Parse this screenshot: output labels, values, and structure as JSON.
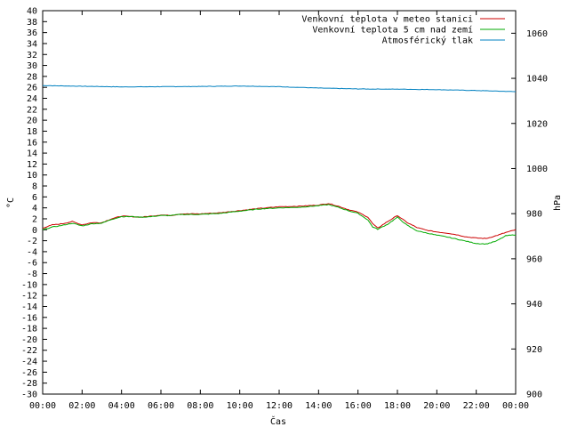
{
  "chart_data": {
    "type": "line",
    "xlabel": "Čas",
    "ylabel": "°C",
    "y2label": "hPa",
    "x_range": [
      "00:00",
      "24:00"
    ],
    "xticks": [
      "00:00",
      "02:00",
      "04:00",
      "06:00",
      "08:00",
      "10:00",
      "12:00",
      "14:00",
      "16:00",
      "18:00",
      "20:00",
      "22:00",
      "00:00"
    ],
    "ylim": [
      -30,
      40
    ],
    "y_tick_step": 2,
    "y2lim": [
      900,
      1070
    ],
    "y2ticks": [
      900,
      920,
      940,
      960,
      980,
      1000,
      1020,
      1040,
      1060
    ],
    "grid": false,
    "legend_position": "top-right",
    "series": [
      {
        "name": "Venkovní teplota v meteo stanici",
        "axis": "left",
        "color": "#cc0000",
        "x": [
          "00:00",
          "00:30",
          "01:00",
          "01:30",
          "02:00",
          "02:30",
          "03:00",
          "03:30",
          "04:00",
          "04:30",
          "05:00",
          "05:30",
          "06:00",
          "06:30",
          "07:00",
          "08:00",
          "09:00",
          "10:00",
          "11:00",
          "12:00",
          "13:00",
          "14:00",
          "14:30",
          "15:00",
          "15:30",
          "16:00",
          "16:30",
          "16:45",
          "17:00",
          "17:30",
          "18:00",
          "18:30",
          "19:00",
          "19:30",
          "20:00",
          "20:30",
          "21:00",
          "21:30",
          "22:00",
          "22:30",
          "23:00",
          "23:30",
          "24:00"
        ],
        "values": [
          0.3,
          0.9,
          1.1,
          1.5,
          0.9,
          1.3,
          1.3,
          2.0,
          2.5,
          2.4,
          2.3,
          2.5,
          2.7,
          2.6,
          2.9,
          2.9,
          3.1,
          3.5,
          3.9,
          4.2,
          4.3,
          4.5,
          4.8,
          4.3,
          3.7,
          3.2,
          2.3,
          1.1,
          0.3,
          1.5,
          2.6,
          1.3,
          0.4,
          -0.1,
          -0.4,
          -0.6,
          -0.9,
          -1.3,
          -1.5,
          -1.6,
          -1.1,
          -0.5,
          0.0
        ]
      },
      {
        "name": "Venkovní teplota 5 cm nad zemí",
        "axis": "left",
        "color": "#00aa00",
        "x": [
          "00:00",
          "00:30",
          "01:00",
          "01:30",
          "02:00",
          "02:30",
          "03:00",
          "03:30",
          "04:00",
          "04:30",
          "05:00",
          "05:30",
          "06:00",
          "06:30",
          "07:00",
          "08:00",
          "09:00",
          "10:00",
          "11:00",
          "12:00",
          "13:00",
          "14:00",
          "14:30",
          "15:00",
          "15:30",
          "16:00",
          "16:30",
          "16:45",
          "17:00",
          "17:30",
          "18:00",
          "18:30",
          "19:00",
          "19:30",
          "20:00",
          "20:30",
          "21:00",
          "21:30",
          "22:00",
          "22:30",
          "23:00",
          "23:30",
          "24:00"
        ],
        "values": [
          0.0,
          0.5,
          0.8,
          1.2,
          0.7,
          1.1,
          1.2,
          1.9,
          2.4,
          2.4,
          2.3,
          2.4,
          2.6,
          2.6,
          2.8,
          2.8,
          3.0,
          3.4,
          3.8,
          4.0,
          4.1,
          4.4,
          4.6,
          4.1,
          3.5,
          3.0,
          1.8,
          0.5,
          0.1,
          1.0,
          2.3,
          0.8,
          -0.2,
          -0.6,
          -1.0,
          -1.3,
          -1.7,
          -2.1,
          -2.5,
          -2.6,
          -2.1,
          -1.1,
          -0.9
        ]
      },
      {
        "name": "Atmosférický tlak",
        "axis": "right",
        "color": "#0080c0",
        "x": [
          "00:00",
          "02:00",
          "04:00",
          "06:00",
          "08:00",
          "10:00",
          "12:00",
          "14:00",
          "16:00",
          "18:00",
          "20:00",
          "22:00",
          "24:00"
        ],
        "values": [
          1036.8,
          1036.5,
          1036.2,
          1036.3,
          1036.4,
          1036.6,
          1036.3,
          1035.7,
          1035.3,
          1035.2,
          1035.0,
          1034.6,
          1034.1
        ]
      }
    ]
  }
}
